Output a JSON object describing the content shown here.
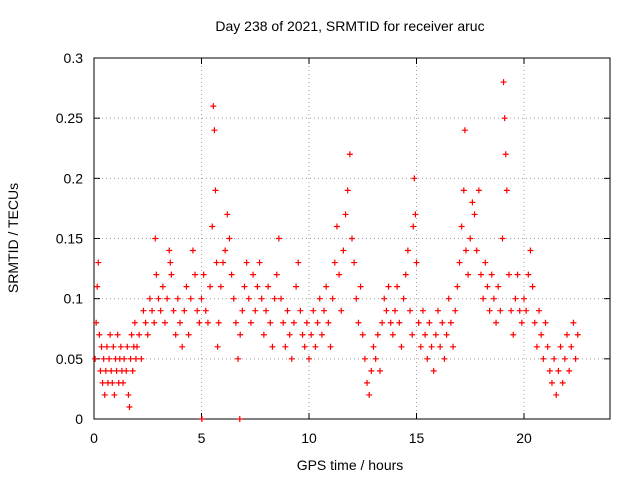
{
  "chart_data": {
    "type": "scatter",
    "title": "Day 238 of 2021, SRMTID for receiver aruc",
    "xlabel": "GPS time / hours",
    "ylabel": "SRMTID / TECUs",
    "xlim": [
      0,
      24
    ],
    "ylim": [
      0,
      0.3
    ],
    "x_ticks": [
      0,
      5,
      10,
      15,
      20
    ],
    "y_ticks": [
      0,
      0.05,
      0.1,
      0.15,
      0.2,
      0.25,
      0.3
    ],
    "y_tick_labels": [
      "0",
      "0.05",
      "0.1",
      "0.15",
      "0.2",
      "0.25",
      "0.3"
    ],
    "grid": true,
    "marker": "+",
    "series": [
      {
        "name": "SRMTID",
        "color": "#ff0000",
        "points": [
          [
            0.05,
            0.05
          ],
          [
            0.1,
            0.08
          ],
          [
            0.15,
            0.11
          ],
          [
            0.2,
            0.13
          ],
          [
            0.25,
            0.07
          ],
          [
            0.3,
            0.04
          ],
          [
            0.35,
            0.06
          ],
          [
            0.4,
            0.03
          ],
          [
            0.45,
            0.05
          ],
          [
            0.5,
            0.02
          ],
          [
            0.55,
            0.04
          ],
          [
            0.6,
            0.06
          ],
          [
            0.65,
            0.03
          ],
          [
            0.7,
            0.05
          ],
          [
            0.75,
            0.07
          ],
          [
            0.8,
            0.04
          ],
          [
            0.85,
            0.03
          ],
          [
            0.9,
            0.06
          ],
          [
            0.95,
            0.02
          ],
          [
            1.0,
            0.05
          ],
          [
            1.05,
            0.04
          ],
          [
            1.1,
            0.07
          ],
          [
            1.15,
            0.03
          ],
          [
            1.2,
            0.05
          ],
          [
            1.25,
            0.06
          ],
          [
            1.3,
            0.04
          ],
          [
            1.35,
            0.03
          ],
          [
            1.4,
            0.05
          ],
          [
            1.5,
            0.04
          ],
          [
            1.55,
            0.06
          ],
          [
            1.6,
            0.02
          ],
          [
            1.65,
            0.01
          ],
          [
            1.7,
            0.05
          ],
          [
            1.75,
            0.07
          ],
          [
            1.8,
            0.04
          ],
          [
            1.85,
            0.06
          ],
          [
            1.9,
            0.08
          ],
          [
            1.95,
            0.05
          ],
          [
            2.0,
            0.06
          ],
          [
            2.1,
            0.07
          ],
          [
            2.2,
            0.05
          ],
          [
            2.3,
            0.09
          ],
          [
            2.4,
            0.08
          ],
          [
            2.5,
            0.07
          ],
          [
            2.6,
            0.1
          ],
          [
            2.7,
            0.09
          ],
          [
            2.8,
            0.08
          ],
          [
            2.85,
            0.15
          ],
          [
            2.9,
            0.12
          ],
          [
            3.0,
            0.1
          ],
          [
            3.1,
            0.09
          ],
          [
            3.2,
            0.11
          ],
          [
            3.3,
            0.08
          ],
          [
            3.4,
            0.1
          ],
          [
            3.5,
            0.14
          ],
          [
            3.55,
            0.13
          ],
          [
            3.6,
            0.12
          ],
          [
            3.7,
            0.09
          ],
          [
            3.8,
            0.07
          ],
          [
            3.9,
            0.1
          ],
          [
            4.0,
            0.08
          ],
          [
            4.1,
            0.06
          ],
          [
            4.2,
            0.09
          ],
          [
            4.3,
            0.11
          ],
          [
            4.4,
            0.07
          ],
          [
            4.5,
            0.1
          ],
          [
            4.6,
            0.14
          ],
          [
            4.7,
            0.12
          ],
          [
            4.8,
            0.09
          ],
          [
            4.9,
            0.08
          ],
          [
            5.0,
            0.1
          ],
          [
            5.1,
            0.12
          ],
          [
            5.2,
            0.09
          ],
          [
            5.3,
            0.08
          ],
          [
            5.4,
            0.11
          ],
          [
            5.5,
            0.16
          ],
          [
            5.55,
            0.26
          ],
          [
            5.6,
            0.24
          ],
          [
            5.65,
            0.19
          ],
          [
            5.7,
            0.13
          ],
          [
            5.75,
            0.06
          ],
          [
            5.8,
            0.08
          ],
          [
            5.9,
            0.11
          ],
          [
            6.0,
            0.13
          ],
          [
            6.1,
            0.14
          ],
          [
            6.2,
            0.17
          ],
          [
            6.3,
            0.15
          ],
          [
            6.4,
            0.12
          ],
          [
            6.5,
            0.1
          ],
          [
            6.6,
            0.08
          ],
          [
            6.7,
            0.05
          ],
          [
            6.8,
            0.07
          ],
          [
            6.9,
            0.09
          ],
          [
            7.0,
            0.11
          ],
          [
            7.1,
            0.13
          ],
          [
            7.2,
            0.1
          ],
          [
            7.3,
            0.08
          ],
          [
            7.4,
            0.12
          ],
          [
            7.5,
            0.09
          ],
          [
            7.6,
            0.11
          ],
          [
            7.7,
            0.13
          ],
          [
            7.8,
            0.1
          ],
          [
            7.9,
            0.07
          ],
          [
            8.0,
            0.09
          ],
          [
            8.1,
            0.11
          ],
          [
            8.2,
            0.08
          ],
          [
            8.3,
            0.06
          ],
          [
            8.4,
            0.1
          ],
          [
            8.5,
            0.12
          ],
          [
            8.6,
            0.15
          ],
          [
            8.7,
            0.1
          ],
          [
            8.8,
            0.08
          ],
          [
            8.9,
            0.06
          ],
          [
            9.0,
            0.09
          ],
          [
            9.1,
            0.07
          ],
          [
            9.2,
            0.05
          ],
          [
            9.3,
            0.08
          ],
          [
            9.4,
            0.11
          ],
          [
            9.5,
            0.13
          ],
          [
            9.6,
            0.09
          ],
          [
            9.7,
            0.07
          ],
          [
            9.8,
            0.06
          ],
          [
            9.9,
            0.08
          ],
          [
            10.0,
            0.05
          ],
          [
            10.1,
            0.07
          ],
          [
            10.2,
            0.09
          ],
          [
            10.3,
            0.06
          ],
          [
            10.4,
            0.08
          ],
          [
            10.5,
            0.1
          ],
          [
            10.6,
            0.07
          ],
          [
            10.7,
            0.09
          ],
          [
            10.8,
            0.11
          ],
          [
            10.9,
            0.08
          ],
          [
            11.0,
            0.06
          ],
          [
            11.1,
            0.1
          ],
          [
            11.2,
            0.13
          ],
          [
            11.3,
            0.16
          ],
          [
            11.4,
            0.12
          ],
          [
            11.5,
            0.09
          ],
          [
            11.6,
            0.14
          ],
          [
            11.7,
            0.17
          ],
          [
            11.8,
            0.19
          ],
          [
            11.9,
            0.22
          ],
          [
            12.0,
            0.15
          ],
          [
            12.1,
            0.13
          ],
          [
            12.2,
            0.1
          ],
          [
            12.3,
            0.08
          ],
          [
            12.4,
            0.11
          ],
          [
            12.5,
            0.07
          ],
          [
            12.6,
            0.05
          ],
          [
            12.7,
            0.03
          ],
          [
            12.8,
            0.02
          ],
          [
            12.9,
            0.04
          ],
          [
            13.0,
            0.06
          ],
          [
            13.1,
            0.05
          ],
          [
            13.2,
            0.07
          ],
          [
            13.3,
            0.04
          ],
          [
            13.4,
            0.08
          ],
          [
            13.5,
            0.1
          ],
          [
            13.6,
            0.09
          ],
          [
            13.7,
            0.11
          ],
          [
            13.8,
            0.08
          ],
          [
            13.9,
            0.07
          ],
          [
            14.0,
            0.09
          ],
          [
            14.1,
            0.11
          ],
          [
            14.2,
            0.08
          ],
          [
            14.3,
            0.06
          ],
          [
            14.4,
            0.1
          ],
          [
            14.5,
            0.12
          ],
          [
            14.6,
            0.14
          ],
          [
            14.7,
            0.09
          ],
          [
            14.8,
            0.07
          ],
          [
            14.85,
            0.16
          ],
          [
            14.9,
            0.2
          ],
          [
            14.95,
            0.17
          ],
          [
            15.0,
            0.13
          ],
          [
            15.1,
            0.08
          ],
          [
            15.2,
            0.06
          ],
          [
            15.3,
            0.09
          ],
          [
            15.4,
            0.07
          ],
          [
            15.5,
            0.05
          ],
          [
            15.6,
            0.08
          ],
          [
            15.7,
            0.06
          ],
          [
            15.8,
            0.04
          ],
          [
            15.9,
            0.07
          ],
          [
            16.0,
            0.09
          ],
          [
            16.1,
            0.06
          ],
          [
            16.2,
            0.08
          ],
          [
            16.3,
            0.05
          ],
          [
            16.4,
            0.07
          ],
          [
            16.5,
            0.1
          ],
          [
            16.6,
            0.08
          ],
          [
            16.7,
            0.06
          ],
          [
            16.8,
            0.09
          ],
          [
            16.9,
            0.11
          ],
          [
            17.0,
            0.13
          ],
          [
            17.1,
            0.16
          ],
          [
            17.2,
            0.19
          ],
          [
            17.25,
            0.24
          ],
          [
            17.3,
            0.14
          ],
          [
            17.4,
            0.12
          ],
          [
            17.5,
            0.15
          ],
          [
            17.6,
            0.18
          ],
          [
            17.7,
            0.17
          ],
          [
            17.8,
            0.14
          ],
          [
            17.9,
            0.19
          ],
          [
            18.0,
            0.12
          ],
          [
            18.1,
            0.1
          ],
          [
            18.2,
            0.13
          ],
          [
            18.3,
            0.11
          ],
          [
            18.4,
            0.09
          ],
          [
            18.5,
            0.12
          ],
          [
            18.6,
            0.1
          ],
          [
            18.7,
            0.08
          ],
          [
            18.8,
            0.11
          ],
          [
            18.9,
            0.09
          ],
          [
            19.0,
            0.15
          ],
          [
            19.05,
            0.28
          ],
          [
            19.1,
            0.25
          ],
          [
            19.15,
            0.22
          ],
          [
            19.2,
            0.19
          ],
          [
            19.3,
            0.12
          ],
          [
            19.4,
            0.09
          ],
          [
            19.5,
            0.07
          ],
          [
            19.6,
            0.1
          ],
          [
            19.7,
            0.12
          ],
          [
            19.8,
            0.09
          ],
          [
            19.9,
            0.08
          ],
          [
            20.0,
            0.1
          ],
          [
            20.1,
            0.09
          ],
          [
            20.2,
            0.12
          ],
          [
            20.3,
            0.14
          ],
          [
            20.4,
            0.11
          ],
          [
            20.5,
            0.08
          ],
          [
            20.6,
            0.06
          ],
          [
            20.7,
            0.09
          ],
          [
            20.8,
            0.07
          ],
          [
            20.9,
            0.05
          ],
          [
            21.0,
            0.08
          ],
          [
            21.1,
            0.06
          ],
          [
            21.2,
            0.04
          ],
          [
            21.3,
            0.03
          ],
          [
            21.4,
            0.05
          ],
          [
            21.5,
            0.02
          ],
          [
            21.6,
            0.04
          ],
          [
            21.7,
            0.06
          ],
          [
            21.8,
            0.03
          ],
          [
            21.9,
            0.05
          ],
          [
            22.0,
            0.07
          ],
          [
            22.1,
            0.04
          ],
          [
            22.2,
            0.06
          ],
          [
            22.3,
            0.08
          ],
          [
            22.4,
            0.05
          ],
          [
            22.5,
            0.07
          ],
          [
            5.02,
            0.0
          ],
          [
            6.78,
            0.0
          ]
        ]
      }
    ]
  }
}
